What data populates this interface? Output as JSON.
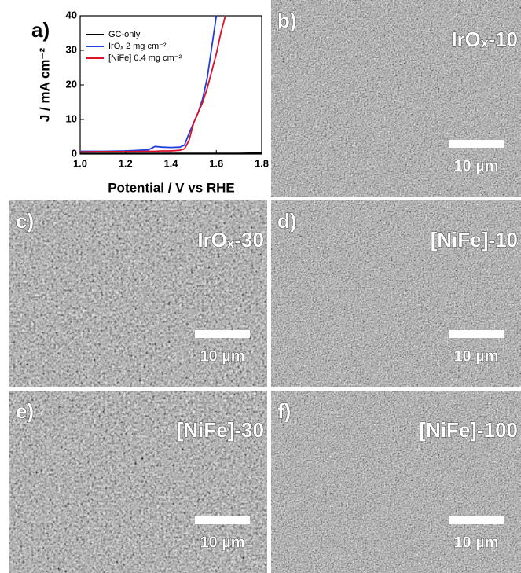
{
  "chart_data": {
    "type": "line",
    "panel_label": "a)",
    "xlabel": "Potential / V vs RHE",
    "ylabel": "J / mA cm⁻²",
    "x": [
      1.0,
      1.1,
      1.2,
      1.3,
      1.33,
      1.36,
      1.4,
      1.44,
      1.46,
      1.48,
      1.5,
      1.52,
      1.54,
      1.56,
      1.58,
      1.6,
      1.62,
      1.64,
      1.7,
      1.8
    ],
    "series": [
      {
        "name": "GC-only",
        "color": "#000000",
        "values": [
          0.2,
          0.2,
          0.2,
          0.2,
          0.2,
          0.2,
          0.2,
          0.2,
          0.2,
          0.2,
          0.2,
          0.2,
          0.2,
          0.2,
          0.2,
          0.2,
          0.2,
          0.2,
          0.2,
          0.3
        ]
      },
      {
        "name": "IrOₓ 2 mg cm⁻²",
        "color": "#1f3fe0",
        "values": [
          0.8,
          0.8,
          0.9,
          1.2,
          2.2,
          2.0,
          1.9,
          2.0,
          2.6,
          6,
          9,
          12,
          16,
          22,
          31,
          40,
          null,
          null,
          null,
          null
        ]
      },
      {
        "name": "[NiFe] 0.4 mg cm⁻²",
        "color": "#e0102a",
        "values": [
          0.6,
          0.7,
          0.7,
          0.8,
          0.8,
          0.9,
          0.9,
          1.1,
          1.5,
          4,
          9,
          12,
          15,
          19,
          24,
          29,
          35,
          40,
          null,
          null
        ]
      }
    ],
    "xlim": [
      1.0,
      1.8
    ],
    "xticks": [
      {
        "value": 1.0,
        "label": "1.0"
      },
      1.2,
      1.4,
      1.6,
      1.8
    ],
    "ylim": [
      0,
      40
    ],
    "yticks": [
      0,
      10,
      20,
      30,
      40
    ],
    "legend": "upper left"
  },
  "panels": [
    {
      "label": "b)",
      "title": "IrOₓ-10",
      "scale_bar": "10 µm"
    },
    {
      "label": "c)",
      "title": "IrOₓ-30",
      "scale_bar": "10 µm"
    },
    {
      "label": "d)",
      "title": "[NiFe]-10",
      "scale_bar": "10 µm"
    },
    {
      "label": "e)",
      "title": "[NiFe]-30",
      "scale_bar": "10 µm"
    },
    {
      "label": "f)",
      "title": "[NiFe]-100",
      "scale_bar": "10 µm"
    }
  ]
}
